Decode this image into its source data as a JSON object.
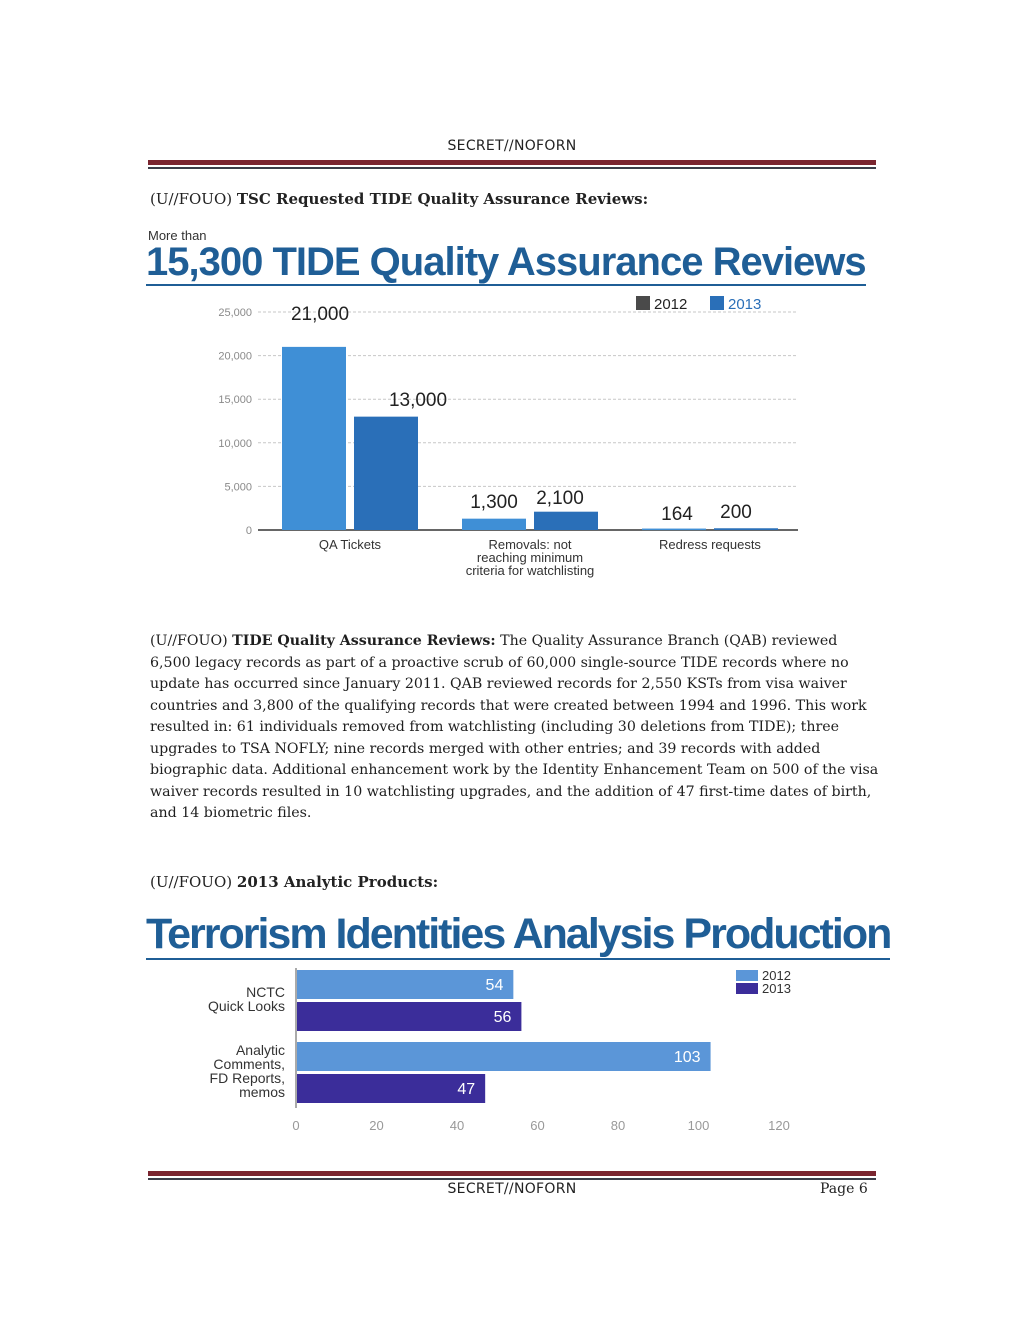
{
  "classification_top": "SECRET//NOFORN",
  "classification_bottom": "SECRET//NOFORN",
  "page_label": "Page 6",
  "section1": {
    "marking": "(U//FOUO)",
    "title": "TSC Requested TIDE Quality Assurance Reviews:"
  },
  "chart1_header": {
    "pre": "More than",
    "heading": "15,300 TIDE Quality Assurance Reviews"
  },
  "paragraph": {
    "marking": "(U//FOUO)",
    "lead": "TIDE Quality Assurance Reviews:",
    "body": "The Quality Assurance Branch (QAB) reviewed 6,500 legacy records as part of a proactive scrub of 60,000 single-source TIDE records where no update has occurred since January 2011. QAB reviewed records for 2,550 KSTs from visa waiver countries and 3,800 of the qualifying records that were created between 1994 and 1996. This work resulted in: 61 individuals removed from watchlisting (including 30 deletions from TIDE); three upgrades to TSA NOFLY; nine records merged with other entries; and 39 records with added biographic data. Additional enhancement work by the Identity Enhancement Team on 500 of the visa waiver records resulted in 10 watchlisting upgrades, and the addition of 47 first-time dates of birth, and 14 biometric files."
  },
  "section2": {
    "marking": "(U//FOUO)",
    "title": "2013 Analytic Products:"
  },
  "chart2_header": {
    "heading": "Terrorism Identities Analysis Production"
  },
  "chart_data": [
    {
      "type": "bar",
      "orientation": "vertical",
      "title": "15,300 TIDE Quality Assurance Reviews",
      "categories": [
        "QA Tickets",
        "Removals: not reaching minimum criteria for watchlisting",
        "Redress requests"
      ],
      "category_lines": [
        [
          "QA Tickets"
        ],
        [
          "Removals: not",
          "reaching minimum",
          "criteria for watchlisting"
        ],
        [
          "Redress requests"
        ]
      ],
      "series": [
        {
          "name": "2012",
          "values": [
            21000,
            1300,
            164
          ],
          "color": "#3f8fd6"
        },
        {
          "name": "2013",
          "values": [
            13000,
            2100,
            200
          ],
          "color": "#2a6fb8"
        }
      ],
      "value_labels": [
        [
          "21,000",
          "1,300",
          "164"
        ],
        [
          "13,000",
          "2,100",
          "200"
        ]
      ],
      "yticks": [
        0,
        5000,
        10000,
        15000,
        20000,
        25000
      ],
      "ytick_labels": [
        "0",
        "5,000",
        "10,000",
        "15,000",
        "20,000",
        "25,000"
      ],
      "ylim": [
        0,
        25000
      ],
      "grid": true,
      "legend": "top-right",
      "xlabel": "",
      "ylabel": ""
    },
    {
      "type": "bar",
      "orientation": "horizontal",
      "title": "Terrorism Identities Analysis Production",
      "categories": [
        "NCTC Quick Looks",
        "Analytic Comments, FD Reports, memos"
      ],
      "category_lines": [
        [
          "NCTC",
          "Quick Looks"
        ],
        [
          "Analytic",
          "Comments,",
          "FD Reports,",
          "memos"
        ]
      ],
      "series": [
        {
          "name": "2012",
          "values": [
            54,
            103
          ],
          "color": "#5b96d8"
        },
        {
          "name": "2013",
          "values": [
            56,
            47
          ],
          "color": "#3b2d9a"
        }
      ],
      "xticks": [
        0,
        20,
        40,
        60,
        80,
        100,
        120
      ],
      "xtick_labels": [
        "0",
        "20",
        "40",
        "60",
        "80",
        "100",
        "120"
      ],
      "xlim": [
        0,
        120
      ],
      "grid": false,
      "legend": "top-right",
      "xlabel": "",
      "ylabel": ""
    }
  ]
}
